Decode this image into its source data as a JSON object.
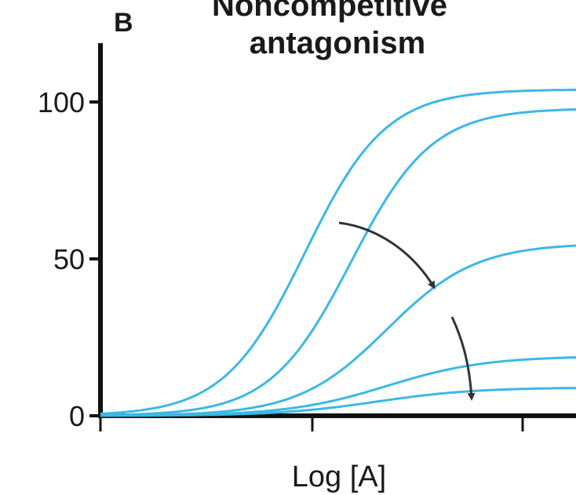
{
  "chart_data": {
    "type": "line",
    "panel_label": "B",
    "title_lines": [
      "Noncompetitive",
      "antagonism"
    ],
    "xlabel": "Log [A]",
    "ylabel": "",
    "ylim": [
      0,
      100
    ],
    "yticks": [
      0,
      50,
      100
    ],
    "ytick_labels": [
      "0",
      "50",
      "100"
    ],
    "x_tick_count": 3,
    "x_tick_labels": [
      "",
      "",
      ""
    ],
    "line_color": "#3bb8e6",
    "axis_color": "#111111",
    "arrow_color": "#333333",
    "grid": false,
    "series": [
      {
        "emax": 104,
        "log_ec50": 1.0,
        "slope": 1.1
      },
      {
        "emax": 98,
        "log_ec50": 1.45,
        "slope": 1.1
      },
      {
        "emax": 55,
        "log_ec50": 1.8,
        "slope": 1.0
      },
      {
        "emax": 19,
        "log_ec50": 1.8,
        "slope": 0.9
      },
      {
        "emax": 9,
        "log_ec50": 1.7,
        "slope": 0.9
      }
    ],
    "annotations": [
      {
        "type": "arrow",
        "meaning": "increasing noncompetitive antagonist (curves 1 to 3)"
      },
      {
        "type": "arrow",
        "meaning": "increasing noncompetitive antagonist (curves 3 to 5)"
      }
    ]
  }
}
